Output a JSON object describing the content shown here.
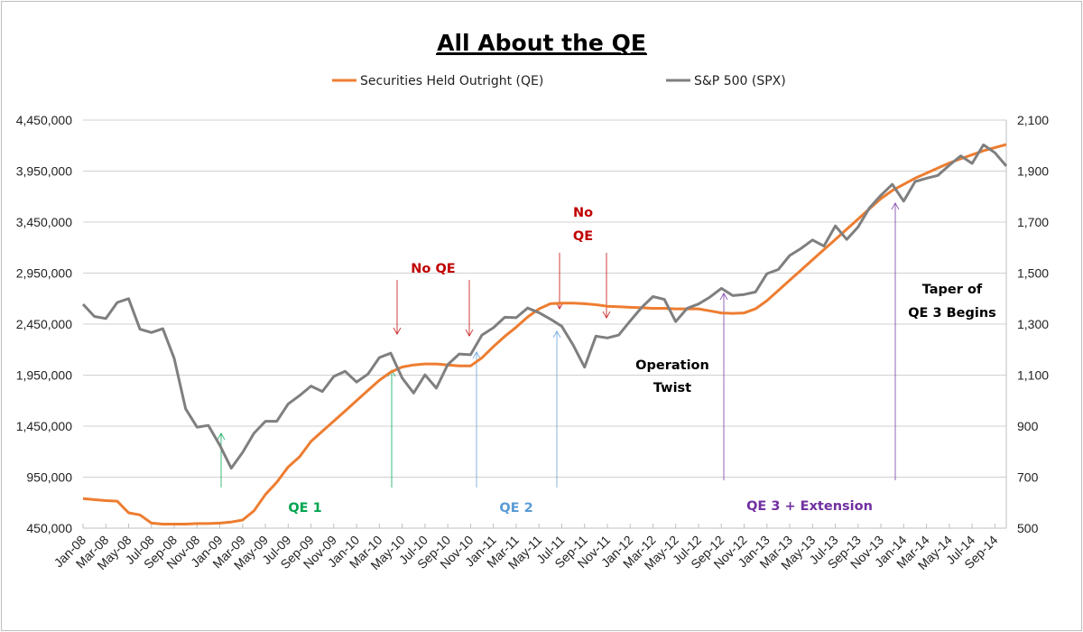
{
  "chart_data": {
    "type": "line",
    "title": "All About the QE",
    "legend_position": "top",
    "grid": true,
    "x_tick_labels": [
      "Jan-08",
      "Mar-08",
      "May-08",
      "Jul-08",
      "Sep-08",
      "Nov-08",
      "Jan-09",
      "Mar-09",
      "May-09",
      "Jul-09",
      "Sep-09",
      "Nov-09",
      "Jan-10",
      "Mar-10",
      "May-10",
      "Jul-10",
      "Sep-10",
      "Nov-10",
      "Jan-11",
      "Mar-11",
      "May-11",
      "Jul-11",
      "Sep-11",
      "Nov-11",
      "Jan-12",
      "Mar-12",
      "May-12",
      "Jul-12",
      "Sep-12",
      "Nov-12",
      "Jan-13",
      "Mar-13",
      "May-13",
      "Jul-13",
      "Sep-13",
      "Nov-13",
      "Jan-14",
      "Mar-14",
      "May-14",
      "Jul-14",
      "Sep-14"
    ],
    "x_start": "Jan-08",
    "x_step": "monthly",
    "y_left": {
      "min": 450000,
      "max": 4450000,
      "ticks": [
        "450,000",
        "950,000",
        "1,450,000",
        "1,950,000",
        "2,450,000",
        "2,950,000",
        "3,450,000",
        "3,950,000",
        "4,450,000"
      ]
    },
    "y_right": {
      "min": 500,
      "max": 2100,
      "ticks": [
        "500",
        "700",
        "900",
        "1,100",
        "1,300",
        "1,500",
        "1,700",
        "1,900",
        "2,100"
      ]
    },
    "series": [
      {
        "name": "Securities Held Outright (QE)",
        "axis": "left",
        "color": "#ed7d31",
        "values": [
          740000,
          730000,
          720000,
          715000,
          600000,
          580000,
          500000,
          490000,
          490000,
          490000,
          495000,
          495000,
          500000,
          510000,
          530000,
          620000,
          780000,
          900000,
          1050000,
          1150000,
          1300000,
          1400000,
          1500000,
          1600000,
          1700000,
          1800000,
          1900000,
          1980000,
          2030000,
          2050000,
          2060000,
          2060000,
          2050000,
          2040000,
          2040000,
          2120000,
          2230000,
          2330000,
          2420000,
          2520000,
          2600000,
          2650000,
          2655000,
          2655000,
          2650000,
          2640000,
          2625000,
          2620000,
          2615000,
          2610000,
          2605000,
          2605000,
          2600000,
          2600000,
          2600000,
          2580000,
          2560000,
          2555000,
          2560000,
          2600000,
          2680000,
          2780000,
          2880000,
          2980000,
          3080000,
          3180000,
          3280000,
          3380000,
          3480000,
          3580000,
          3680000,
          3760000,
          3820000,
          3880000,
          3930000,
          3980000,
          4030000,
          4070000,
          4110000,
          4150000,
          4180000,
          4210000
        ]
      },
      {
        "name": "S&P 500 (SPX)",
        "axis": "right",
        "color": "#7f7f7f",
        "values": [
          1378,
          1330,
          1322,
          1385,
          1400,
          1280,
          1267,
          1282,
          1166,
          968,
          896,
          903,
          825,
          735,
          797,
          872,
          919,
          919,
          987,
          1020,
          1057,
          1036,
          1095,
          1115,
          1073,
          1104,
          1169,
          1186,
          1089,
          1030,
          1101,
          1049,
          1141,
          1183,
          1180,
          1257,
          1286,
          1327,
          1325,
          1363,
          1345,
          1320,
          1292,
          1218,
          1131,
          1253,
          1246,
          1257,
          1312,
          1365,
          1408,
          1397,
          1310,
          1362,
          1379,
          1406,
          1440,
          1412,
          1416,
          1426,
          1498,
          1514,
          1569,
          1597,
          1630,
          1606,
          1685,
          1632,
          1681,
          1756,
          1805,
          1848,
          1782,
          1859,
          1872,
          1883,
          1923,
          1960,
          1930,
          2003,
          1972,
          1920
        ]
      }
    ],
    "annotations": {
      "no_qe_1": "No QE",
      "no_qe_2_line1": "No",
      "no_qe_2_line2": "QE",
      "qe1": "QE 1",
      "qe2": "QE 2",
      "qe3": "QE 3 + Extension",
      "twist_line1": "Operation",
      "twist_line2": "Twist",
      "taper_line1": "Taper of",
      "taper_line2": "QE 3 Begins"
    },
    "annotation_colors": {
      "no_qe": "#c00000",
      "qe1": "#00a550",
      "qe2": "#5b9bd5",
      "qe3": "#7030a0",
      "text": "#000000"
    }
  }
}
